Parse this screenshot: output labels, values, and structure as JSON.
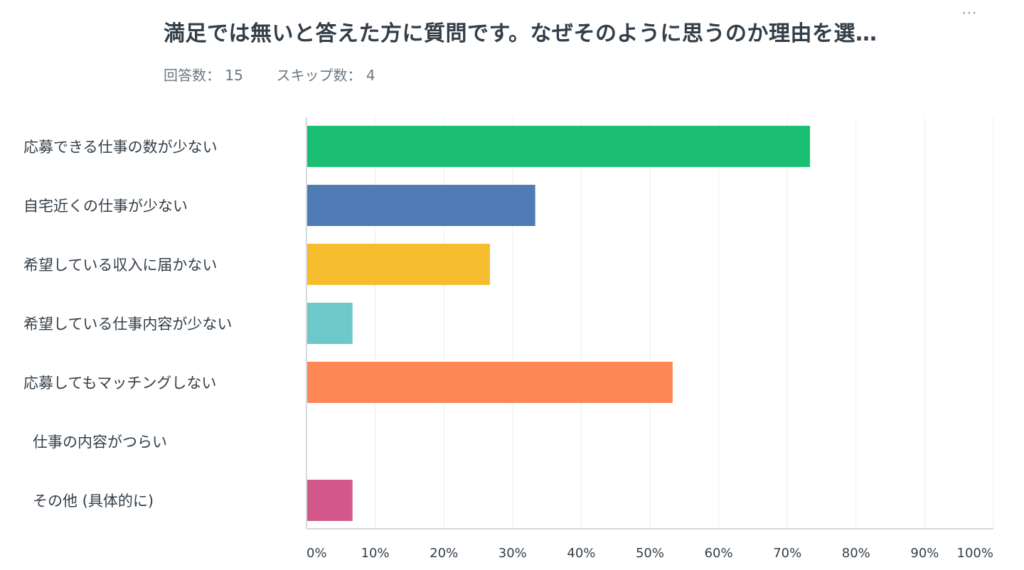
{
  "header": {
    "title": "満足では無いと答えた方に質問です。なぜそのように思うのか理由を選…",
    "menu_icon": "more-horizontal-icon",
    "answers_label": "回答数：",
    "answers_count": "15",
    "skips_label": "スキップ数：",
    "skips_count": "4"
  },
  "chart_data": {
    "type": "bar",
    "orientation": "horizontal",
    "title": "",
    "xlabel": "",
    "ylabel": "",
    "xlim": [
      0,
      100
    ],
    "unit": "%",
    "grid": true,
    "categories": [
      "応募できる仕事の数が少ない",
      "自宅近くの仕事が少ない",
      "希望している収入に届かない",
      "希望している仕事内容が少ない",
      "応募してもマッチングしない",
      "仕事の内容がつらい",
      "その他 (具体的に)"
    ],
    "values": [
      73.3,
      33.3,
      26.7,
      6.7,
      53.3,
      0,
      6.7
    ],
    "colors": [
      "#1bbf73",
      "#507cb6",
      "#f5bd2d",
      "#6dc8c9",
      "#fe8855",
      "#a6cd58",
      "#d2588b"
    ],
    "ticks": [
      "0%",
      "10%",
      "20%",
      "30%",
      "40%",
      "50%",
      "60%",
      "70%",
      "80%",
      "90%",
      "100%"
    ]
  }
}
